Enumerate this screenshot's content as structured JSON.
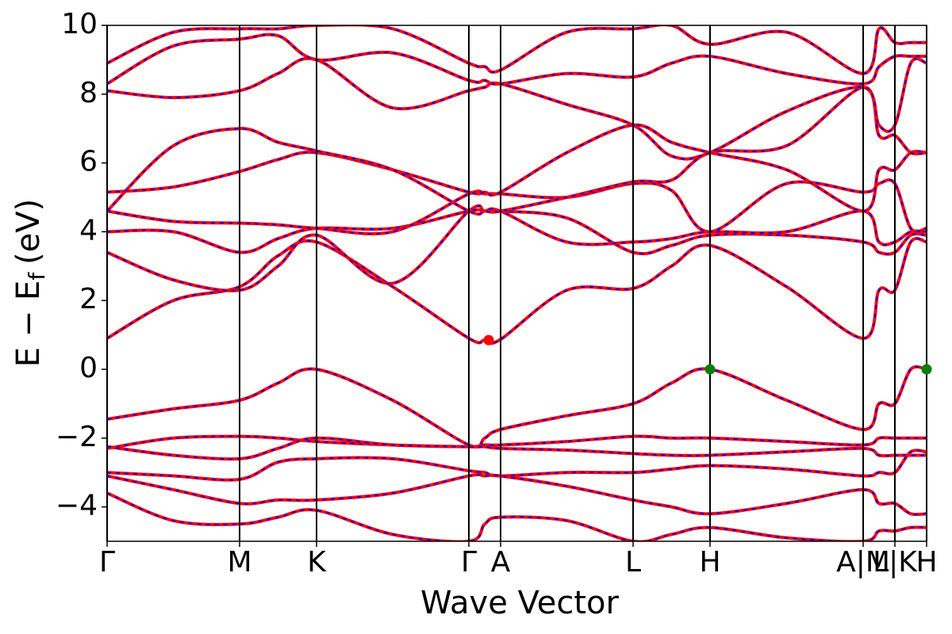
{
  "chart_data": {
    "type": "band_structure",
    "xlabel": "Wave Vector",
    "ylabel": {
      "main": "E − E",
      "sub": "f",
      "unit": "(eV)"
    },
    "xlim": [
      0,
      4.132
    ],
    "ylim": [
      -5,
      10
    ],
    "xticks": [
      {
        "value": 0,
        "label": "Γ"
      },
      {
        "value": 0.668,
        "label": "M"
      },
      {
        "value": 1.056,
        "label": "K"
      },
      {
        "value": 1.824,
        "label": "Γ"
      },
      {
        "value": 1.984,
        "label": "A"
      },
      {
        "value": 2.652,
        "label": "L"
      },
      {
        "value": 3.04,
        "label": "H"
      },
      {
        "value": 3.812,
        "label": "A|M"
      },
      {
        "value": 3.972,
        "label": "L|K"
      },
      {
        "value": 4.132,
        "label": "H"
      }
    ],
    "yticks": [
      {
        "value": -4,
        "label": "−4"
      },
      {
        "value": -2,
        "label": "−2"
      },
      0,
      2,
      4,
      6,
      8,
      10
    ],
    "line_color": "#ff0000",
    "dash_color": "#0000ff",
    "x": [
      0,
      0.334,
      0.668,
      0.862,
      1.056,
      1.44,
      1.824,
      1.904,
      1.984,
      2.318,
      2.652,
      2.846,
      3.04,
      3.426,
      3.812,
      3.892,
      3.972,
      4.052,
      4.132
    ],
    "bands": [
      [
        -1.45,
        -1.15,
        -0.9,
        -0.4,
        0,
        -0.9,
        -2.2,
        -2.0,
        -1.75,
        -1.35,
        -1.0,
        -0.4,
        0,
        -0.9,
        -1.75,
        -1.0,
        -1.0,
        0,
        0
      ],
      [
        -2.3,
        -2.0,
        -1.95,
        -2.0,
        -2.1,
        -2.2,
        -2.25,
        -2.2,
        -2.2,
        -2.1,
        -1.95,
        -2.0,
        -2.0,
        -2.1,
        -2.2,
        -2.0,
        -2.0,
        -2.0,
        -2.0
      ],
      [
        -2.25,
        -2.5,
        -2.6,
        -2.3,
        -2.0,
        -2.2,
        -2.25,
        -2.25,
        -2.3,
        -2.35,
        -2.45,
        -2.5,
        -2.5,
        -2.4,
        -2.3,
        -2.5,
        -2.5,
        -2.5,
        -2.5
      ],
      [
        -3.0,
        -3.1,
        -3.2,
        -2.7,
        -2.6,
        -2.6,
        -2.95,
        -3.0,
        -3.1,
        -3.0,
        -3.0,
        -2.9,
        -2.8,
        -2.9,
        -3.1,
        -3.0,
        -3.0,
        -2.4,
        -2.4
      ],
      [
        -3.1,
        -3.5,
        -3.9,
        -3.8,
        -3.8,
        -3.6,
        -3.1,
        -3.1,
        -3.1,
        -3.4,
        -3.8,
        -4.0,
        -4.2,
        -3.9,
        -3.5,
        -3.9,
        -3.9,
        -4.2,
        -4.2
      ],
      [
        -3.6,
        -4.4,
        -4.5,
        -4.3,
        -4.1,
        -4.8,
        -5.0,
        -4.5,
        -4.3,
        -4.4,
        -5.0,
        -4.8,
        -4.6,
        -4.9,
        -5.0,
        -4.7,
        -4.7,
        -4.6,
        -4.6
      ],
      [
        0.9,
        2.0,
        2.4,
        3.3,
        3.7,
        2.4,
        0.9,
        0.85,
        0.87,
        2.3,
        2.35,
        3.0,
        3.6,
        2.4,
        0.9,
        2.3,
        2.3,
        3.7,
        3.7
      ],
      [
        3.4,
        2.6,
        2.3,
        3.0,
        3.9,
        2.5,
        4.6,
        4.6,
        4.6,
        4.4,
        3.4,
        3.6,
        3.9,
        3.9,
        3.7,
        3.4,
        3.4,
        3.9,
        3.9
      ],
      [
        4.0,
        4.0,
        3.4,
        3.8,
        4.1,
        4.1,
        4.6,
        4.6,
        4.6,
        3.7,
        3.7,
        3.8,
        4.0,
        4.0,
        4.6,
        3.7,
        3.7,
        4.0,
        4.0
      ],
      [
        4.6,
        4.3,
        4.25,
        4.2,
        4.1,
        4.0,
        5.1,
        5.1,
        5.1,
        5.0,
        5.4,
        5.2,
        4.0,
        5.4,
        5.15,
        5.4,
        5.4,
        4.1,
        4.1
      ],
      [
        5.15,
        5.3,
        5.75,
        6.1,
        6.3,
        5.8,
        5.15,
        5.15,
        5.15,
        6.3,
        7.1,
        6.6,
        6.3,
        5.8,
        4.6,
        5.8,
        5.8,
        6.3,
        6.3
      ],
      [
        4.6,
        6.5,
        7.0,
        6.6,
        6.35,
        5.8,
        4.6,
        4.6,
        4.6,
        5.0,
        5.45,
        5.5,
        6.3,
        6.5,
        8.2,
        6.8,
        6.8,
        6.3,
        6.3
      ],
      [
        8.1,
        7.9,
        8.1,
        8.6,
        9.0,
        7.6,
        8.1,
        8.2,
        8.3,
        7.7,
        7.1,
        6.2,
        6.3,
        7.5,
        8.2,
        7.1,
        7.1,
        8.9,
        8.9
      ],
      [
        8.3,
        9.4,
        9.6,
        9.7,
        9.0,
        9.2,
        8.4,
        8.4,
        8.3,
        8.6,
        8.5,
        8.9,
        9.1,
        8.6,
        8.3,
        8.8,
        9.1,
        9.1,
        9.1
      ],
      [
        8.9,
        9.8,
        9.9,
        9.9,
        10.0,
        9.9,
        8.9,
        8.8,
        8.7,
        9.8,
        9.9,
        10.0,
        9.45,
        9.8,
        8.6,
        9.9,
        9.5,
        9.5,
        9.5
      ]
    ],
    "points": [
      {
        "x": 1.924,
        "y": 0.85,
        "color": "#ff0000"
      },
      {
        "x": 3.04,
        "y": 0,
        "color": "#008000"
      },
      {
        "x": 4.132,
        "y": 0,
        "color": "#008000"
      }
    ]
  }
}
